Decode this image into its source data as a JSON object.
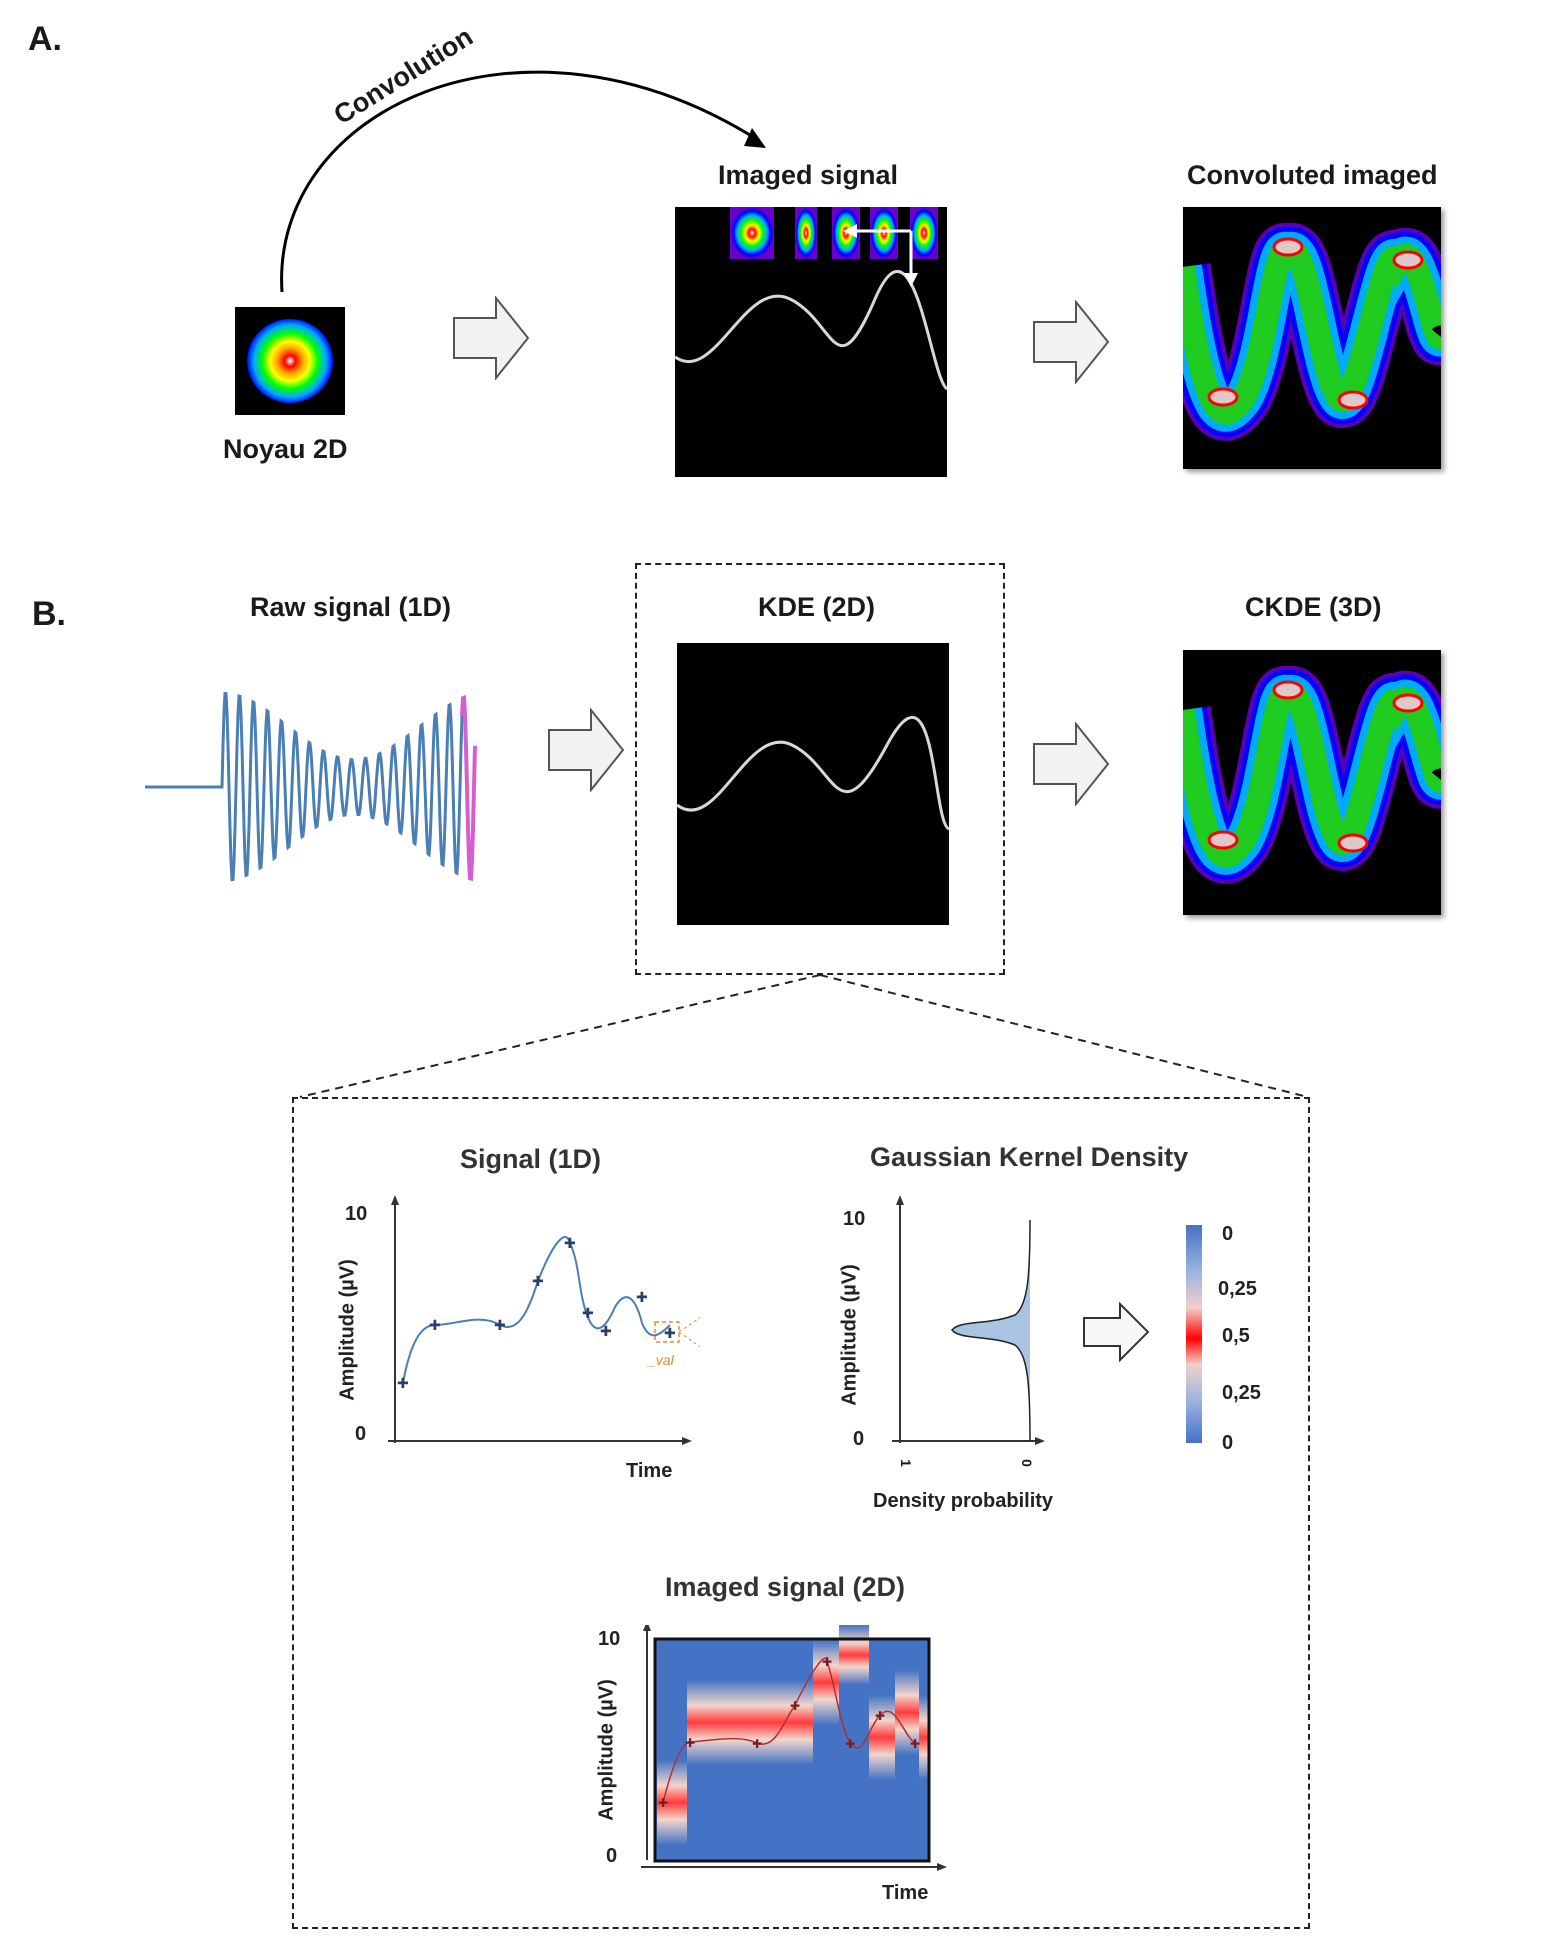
{
  "panel_a": {
    "label": "A.",
    "convolution": "Convolution",
    "kernel_label": "Noyau 2D",
    "imaged_title": "Imaged signal",
    "convoluted_title": "Convoluted imaged"
  },
  "panel_b": {
    "label": "B.",
    "raw_title": "Raw signal (1D)",
    "kde_title": "KDE (2D)",
    "ckde_title": "CKDE (3D)"
  },
  "detail": {
    "signal_title": "Signal (1D)",
    "gkd_title": "Gaussian Kernel Density",
    "imaged2d_title": "Imaged signal (2D)",
    "amplitude_label": "Amplitude (µV)",
    "time_label": "Time",
    "density_label": "Density probability",
    "y_max": "10",
    "y_min": "0",
    "val_label": "_val",
    "density_ticks": [
      "1",
      "0"
    ],
    "colorbar_ticks": [
      "0",
      "0,25",
      "0,5",
      "0,25",
      "0"
    ]
  },
  "colors": {
    "signal_blue": "#4a7fb5",
    "raw_magenta": "#d65fd0",
    "bar_blue": "#4472c4",
    "bar_red": "#ff0000",
    "orange": "#e8883a"
  },
  "icons": [
    "right-arrow-icon",
    "curved-arrow-icon",
    "double-arrow-icon"
  ]
}
